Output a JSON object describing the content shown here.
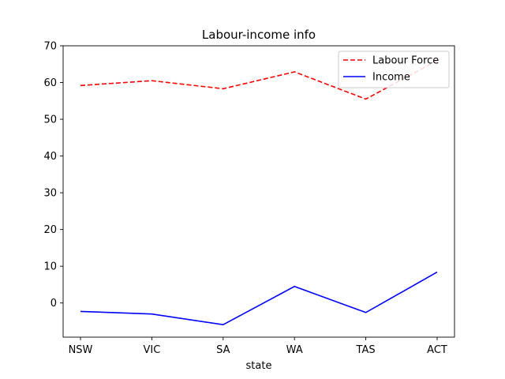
{
  "chart_data": {
    "type": "line",
    "title": "Labour-income info",
    "xlabel": "state",
    "ylabel": "",
    "categories": [
      "NSW",
      "VIC",
      "SA",
      "WA",
      "TAS",
      "ACT"
    ],
    "ylim": [
      -9.3,
      70
    ],
    "yticks": [
      0,
      10,
      20,
      30,
      40,
      50,
      60,
      70
    ],
    "grid": false,
    "legend_position": "top-right",
    "series": [
      {
        "name": "Labour Force",
        "values": [
          59.2,
          60.5,
          58.3,
          62.9,
          55.5,
          66.0
        ],
        "color": "#ff0000",
        "style": "dashed"
      },
      {
        "name": "Income",
        "values": [
          -2.3,
          -3.0,
          -5.9,
          4.5,
          -2.6,
          8.4
        ],
        "color": "#0000ff",
        "style": "solid"
      }
    ]
  }
}
